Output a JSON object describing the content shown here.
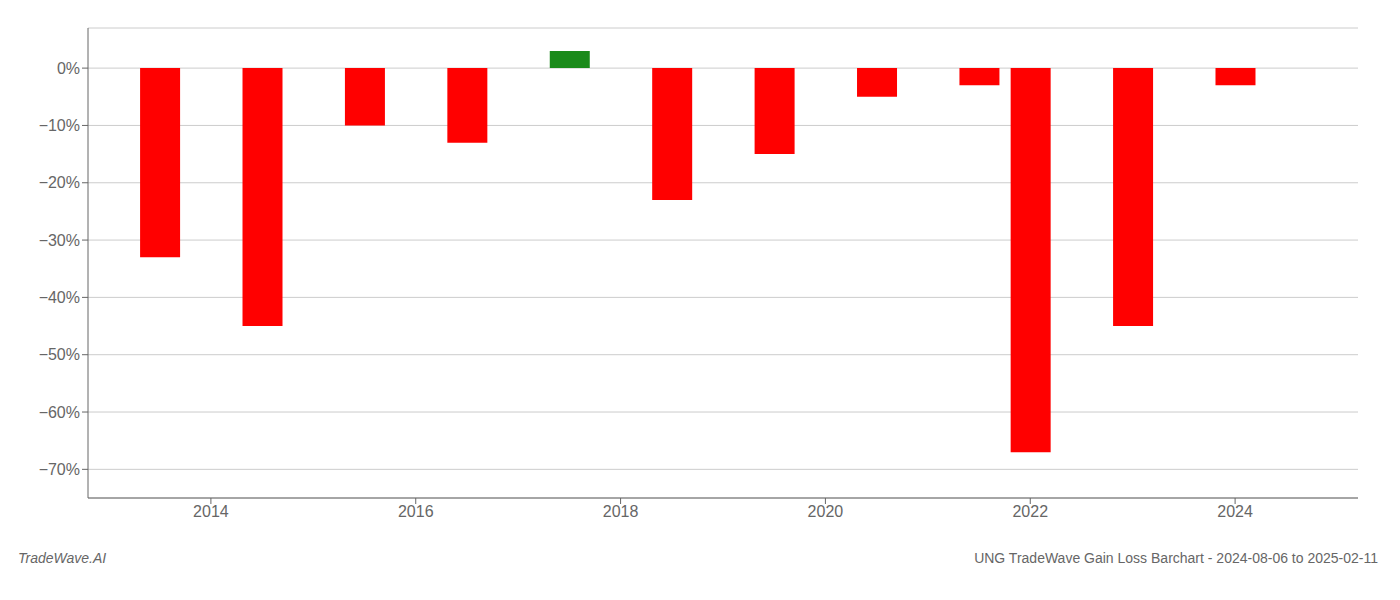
{
  "chart_data": {
    "type": "bar",
    "x": [
      2013.5,
      2014.5,
      2015.5,
      2016.5,
      2017.5,
      2018.5,
      2019.5,
      2020.5,
      2021.5,
      2022.0,
      2023.0,
      2024.0
    ],
    "values": [
      -0.33,
      -0.45,
      -0.1,
      -0.13,
      0.03,
      -0.23,
      -0.15,
      -0.05,
      -0.03,
      -0.67,
      -0.45,
      -0.03
    ],
    "colors": [
      "#ff0000",
      "#ff0000",
      "#ff0000",
      "#ff0000",
      "#1a8a1a",
      "#ff0000",
      "#ff0000",
      "#ff0000",
      "#ff0000",
      "#ff0000",
      "#ff0000",
      "#ff0000"
    ],
    "xlim": [
      2012.8,
      2025.2
    ],
    "ylim": [
      -0.75,
      0.07
    ],
    "xticks": [
      2014,
      2016,
      2018,
      2020,
      2022,
      2024
    ],
    "yticks": [
      {
        "value": 0.0,
        "label": "0%"
      },
      {
        "value": -0.1,
        "label": "−10%"
      },
      {
        "value": -0.2,
        "label": "−20%"
      },
      {
        "value": -0.3,
        "label": "−30%"
      },
      {
        "value": -0.4,
        "label": "−40%"
      },
      {
        "value": -0.5,
        "label": "−50%"
      },
      {
        "value": -0.6,
        "label": "−60%"
      },
      {
        "value": -0.7,
        "label": "−70%"
      }
    ],
    "grid": true,
    "annotations": [
      "TradeWave.AI",
      "UNG TradeWave Gain Loss Barchart - 2024-08-06 to 2025-02-11"
    ]
  }
}
